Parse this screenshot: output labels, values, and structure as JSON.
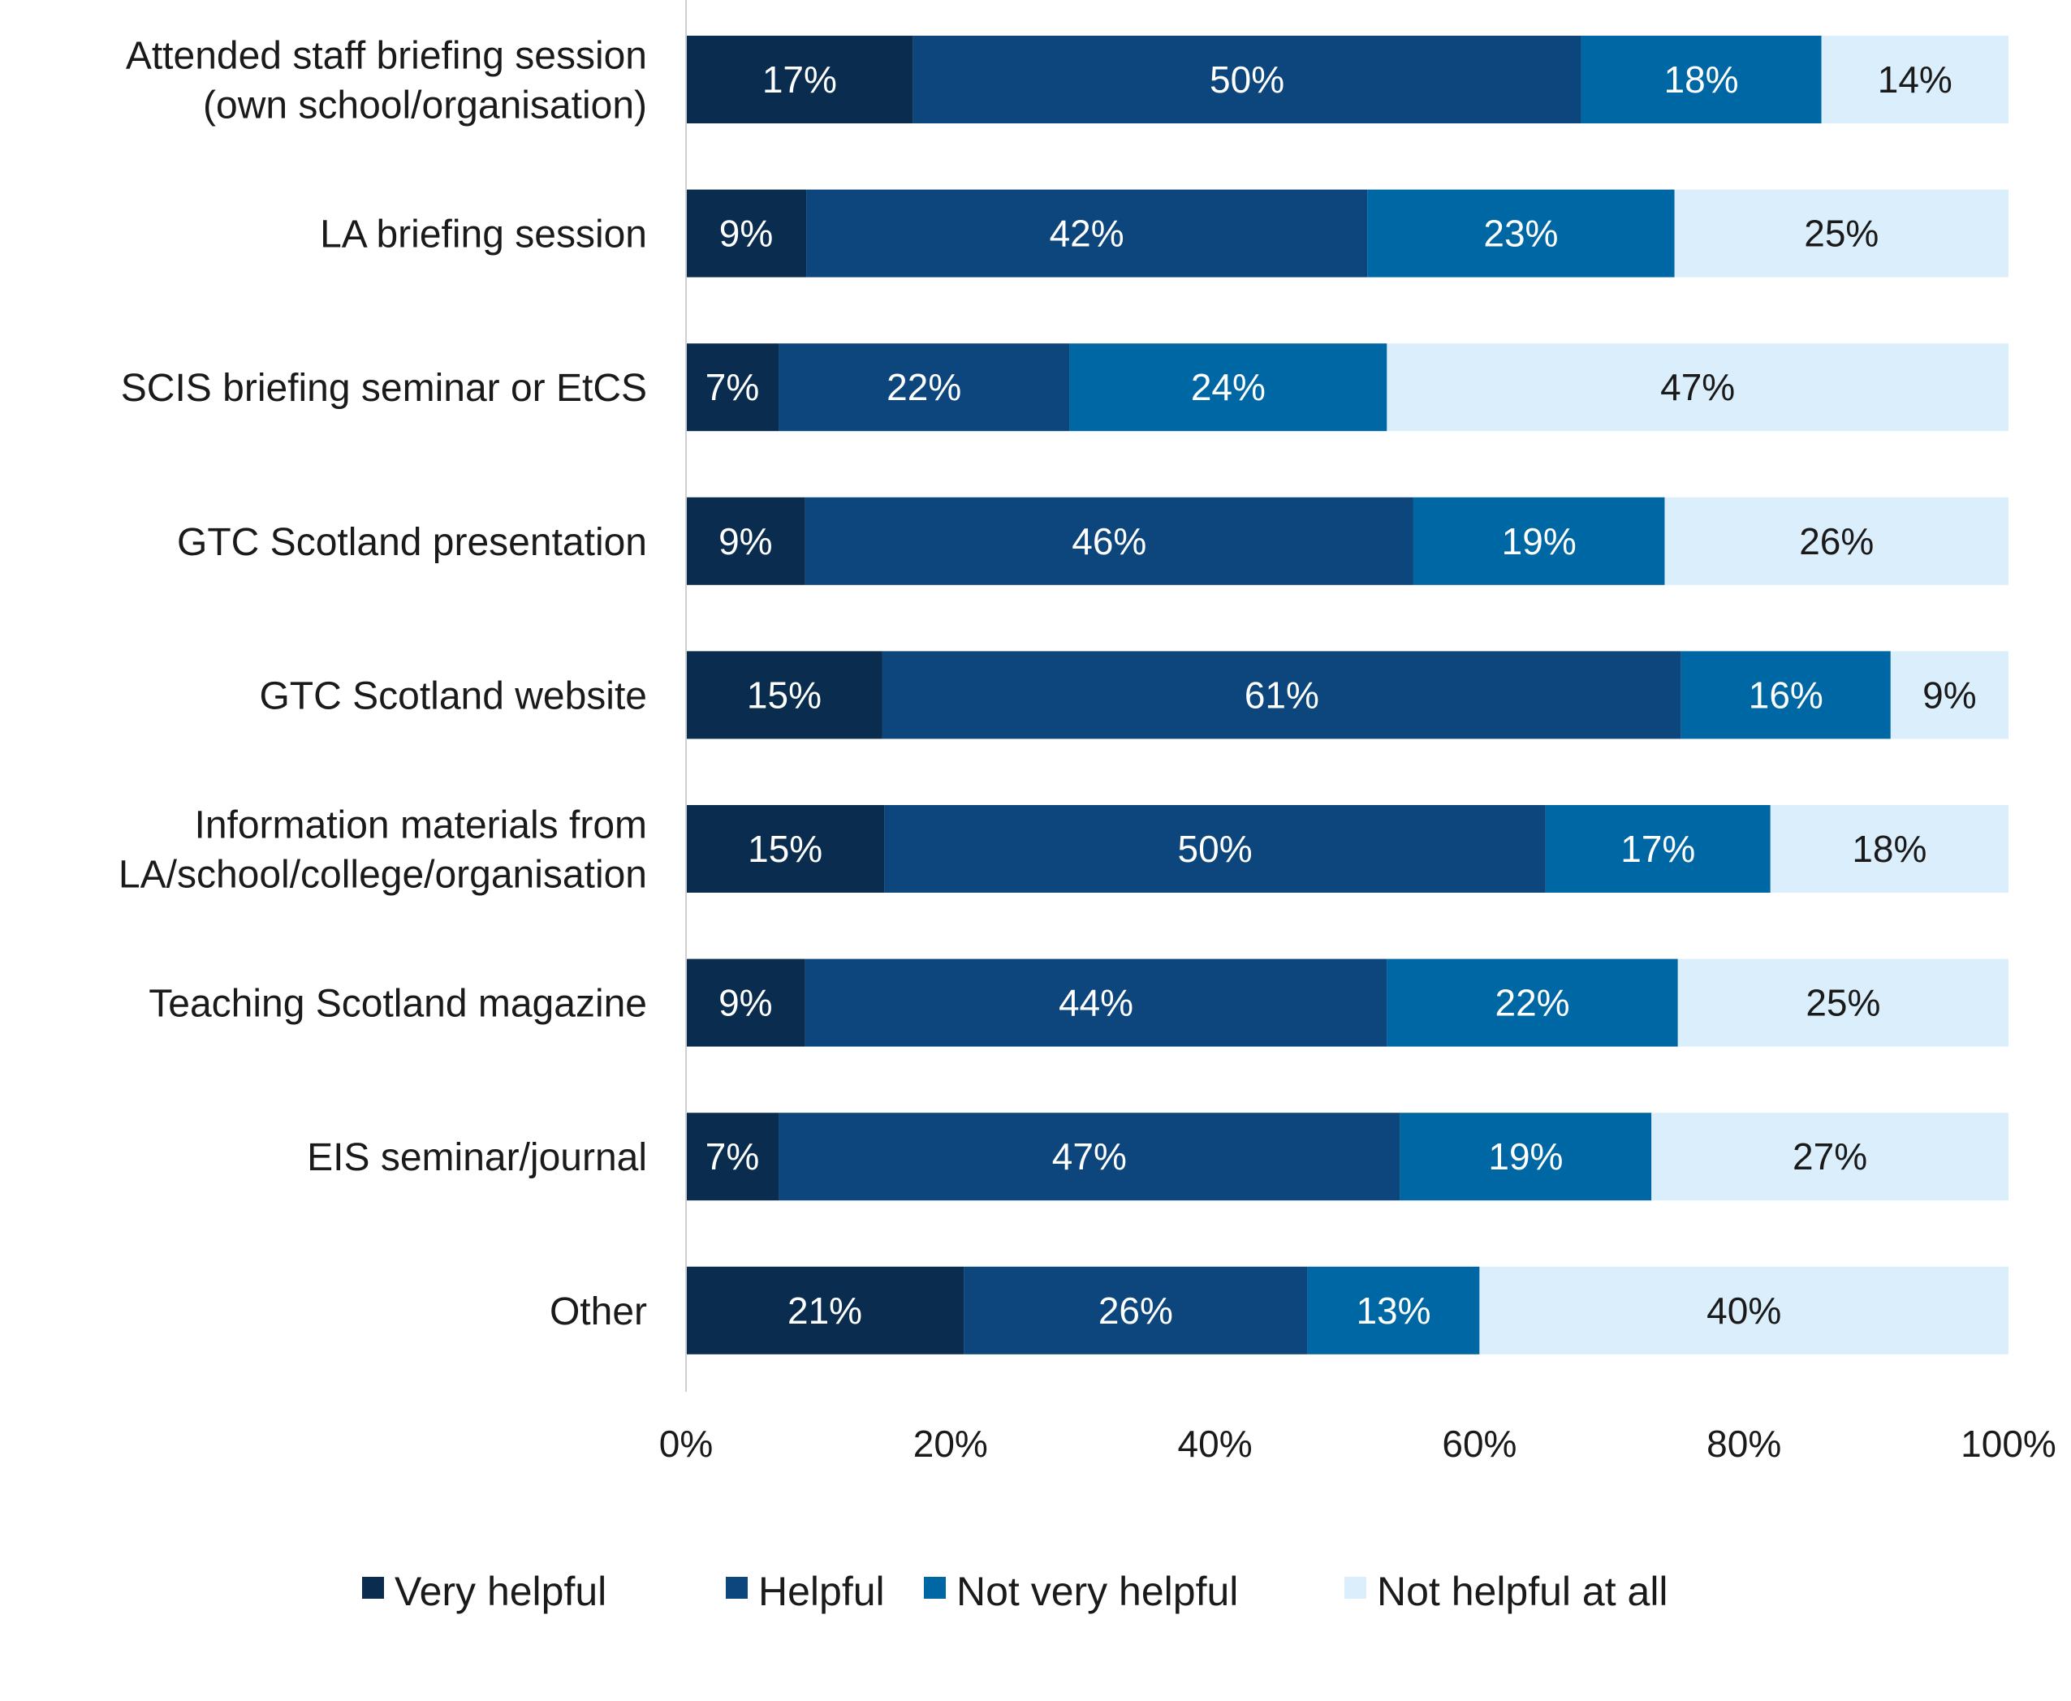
{
  "chart_data": {
    "type": "bar",
    "orientation": "horizontal",
    "stacked": true,
    "categories": [
      [
        "Attended staff briefing session",
        "(own school/organisation)"
      ],
      [
        "LA briefing session"
      ],
      [
        "SCIS briefing seminar or EtCS"
      ],
      [
        "GTC Scotland presentation"
      ],
      [
        "GTC Scotland website"
      ],
      [
        "Information materials from",
        "LA/school/college/organisation"
      ],
      [
        "Teaching Scotland magazine"
      ],
      [
        "EIS seminar/journal"
      ],
      [
        "Other"
      ]
    ],
    "series": [
      {
        "name": "Very helpful",
        "color": "#0a2c4f",
        "label_color": "#ffffff",
        "values": [
          17,
          9,
          7,
          9,
          15,
          15,
          9,
          7,
          21
        ]
      },
      {
        "name": "Helpful",
        "color": "#0c467c",
        "label_color": "#ffffff",
        "values": [
          50,
          42,
          22,
          46,
          61,
          50,
          44,
          47,
          26
        ]
      },
      {
        "name": "Not very helpful",
        "color": "#0067a5",
        "label_color": "#ffffff",
        "values": [
          18,
          23,
          24,
          19,
          16,
          17,
          22,
          19,
          13
        ]
      },
      {
        "name": "Not helpful at all",
        "color": "#dbeefb",
        "label_color": "#1a1a1a",
        "values": [
          14,
          25,
          47,
          26,
          9,
          18,
          25,
          27,
          40
        ]
      }
    ],
    "value_suffix": "%",
    "xlim": [
      0,
      100
    ],
    "x_ticks": [
      "0%",
      "20%",
      "40%",
      "60%",
      "80%",
      "100%"
    ],
    "grid": false,
    "legend_position": "bottom"
  }
}
